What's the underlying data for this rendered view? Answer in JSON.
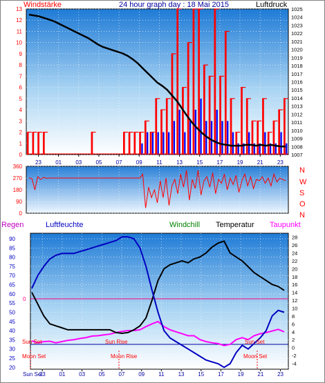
{
  "header": {
    "left_label": "Windstärke",
    "title": "24 hour graph day : 18 Mai 2015",
    "right_label": "Luftdruck"
  },
  "legend": {
    "regen": "Regen",
    "luftfeuchte": "Luftfeuchte",
    "windchill": "Windchill",
    "temperatur": "Temperatur",
    "taupunkt": "Taupunkt"
  },
  "compass": [
    "N",
    "W",
    "S",
    "O",
    "N"
  ],
  "events": {
    "sun_set_1": "Sun Set",
    "sun_rise": "Sun Rise",
    "sun_set_2": "Sun Set",
    "moon_set_1": "Moon Set",
    "moon_rise": "Moon Rise",
    "moon_set_2": "Moon Set",
    "sun_set_axis": "Sun Set"
  },
  "colors": {
    "wind_gust": "#ff0000",
    "wind_avg": "#0000ff",
    "pressure": "#000000",
    "direction": "#ff0000",
    "humidity": "#0000ff",
    "temperature": "#000000",
    "windchill": "#000000",
    "dewpoint": "#ff00ff",
    "rain_line": "#ff0080",
    "event_line": "#0000a0",
    "grad_top": "#1f7bd6",
    "grad_bottom": "#ffffff"
  },
  "chart_data": [
    {
      "type": "line",
      "name": "wind_pressure",
      "x_ticks": [
        "23",
        "01",
        "03",
        "05",
        "07",
        "09",
        "11",
        "13",
        "15",
        "17",
        "19",
        "21",
        "23"
      ],
      "left_axis": {
        "label": "Windstärke",
        "ticks": [
          0,
          1,
          2,
          3,
          4,
          5,
          6,
          7,
          8,
          9,
          10,
          11,
          12,
          13
        ],
        "ylim": [
          0,
          13
        ]
      },
      "right_axis": {
        "label": "Luftdruck",
        "ticks": [
          1007,
          1008,
          1009,
          1010,
          1011,
          1012,
          1013,
          1014,
          1015,
          1016,
          1017,
          1018,
          1019,
          1020,
          1021,
          1022,
          1023,
          1024,
          1025
        ],
        "ylim": [
          1007,
          1025
        ]
      },
      "pressure": {
        "x": [
          22,
          22.5,
          23,
          23.5,
          0,
          0.5,
          1,
          1.5,
          2,
          2.5,
          3,
          3.5,
          4,
          4.5,
          5,
          5.5,
          6,
          6.5,
          7,
          7.5,
          8,
          8.5,
          9,
          9.5,
          10,
          10.5,
          11,
          11.5,
          12,
          12.5,
          13,
          13.5,
          14,
          14.5,
          15,
          15.5,
          16,
          16.5,
          17,
          17.5,
          18,
          18.5,
          19,
          19.5,
          20,
          20.5,
          21,
          21.5,
          22,
          22.5,
          23,
          23.5,
          0
        ],
        "values": [
          1024.3,
          1024.2,
          1024.1,
          1023.9,
          1023.7,
          1023.5,
          1023.2,
          1022.9,
          1022.6,
          1022.3,
          1022.0,
          1021.7,
          1021.4,
          1021.0,
          1020.6,
          1020.3,
          1020.1,
          1019.9,
          1019.7,
          1019.5,
          1019.2,
          1018.8,
          1018.3,
          1017.7,
          1017.1,
          1016.5,
          1015.9,
          1015.5,
          1015.0,
          1014.3,
          1013.6,
          1012.7,
          1011.8,
          1011.0,
          1010.3,
          1009.7,
          1009.2,
          1008.8,
          1008.5,
          1008.3,
          1008.2,
          1008.1,
          1008.1,
          1008.1,
          1008.2,
          1008.2,
          1008.1,
          1008.2,
          1008.1,
          1008.2,
          1008.1,
          1008.0,
          1008.0
        ]
      },
      "wind_gust_hourly_max": [
        2,
        2,
        2,
        2,
        0,
        0,
        0,
        0,
        0,
        0,
        0,
        0,
        2,
        0,
        0,
        0,
        0,
        0,
        2,
        2,
        2,
        2,
        3,
        2,
        5,
        4,
        5,
        9,
        13,
        6,
        10,
        13,
        13,
        8,
        7,
        13,
        7,
        11,
        5,
        2,
        6,
        5,
        3,
        3,
        5,
        2,
        3,
        4,
        5
      ],
      "wind_avg_hourly_max": [
        0,
        0,
        0,
        0,
        0,
        0,
        0,
        0,
        0,
        0,
        0,
        0,
        0,
        0,
        0,
        0,
        0,
        0,
        0,
        0,
        0,
        1,
        2,
        2,
        2,
        2,
        2,
        3,
        4,
        2,
        3,
        4,
        5,
        3,
        3,
        4,
        3,
        3,
        2,
        1,
        1,
        2,
        1,
        1,
        2,
        1,
        1,
        2,
        1
      ]
    },
    {
      "type": "line",
      "name": "wind_direction",
      "left_axis": {
        "ticks": [
          0,
          90,
          180,
          270,
          360
        ],
        "ylim": [
          0,
          360
        ]
      },
      "direction_deg": [
        272,
        265,
        180,
        280,
        260,
        275,
        268,
        270,
        270,
        270,
        270,
        270,
        270,
        270,
        270,
        270,
        270,
        270,
        270,
        270,
        270,
        270,
        270,
        270,
        270,
        270,
        270,
        270,
        270,
        270,
        270,
        270,
        270,
        270,
        270,
        270,
        270,
        270,
        270,
        300,
        40,
        200,
        120,
        180,
        80,
        250,
        120,
        270,
        60,
        210,
        260,
        150,
        300,
        200,
        330,
        100,
        260,
        190,
        330,
        140,
        250,
        280,
        200,
        310,
        150,
        260,
        230,
        300,
        180,
        270,
        220,
        290,
        160,
        250,
        300,
        210,
        280,
        190,
        260,
        250,
        280,
        230,
        270,
        210,
        300,
        240,
        270,
        260,
        250
      ]
    },
    {
      "type": "line",
      "name": "humidity_temperature",
      "left_axis": {
        "label": "Luftfeuchte",
        "ticks": [
          20,
          25,
          30,
          35,
          40,
          45,
          50,
          55,
          60,
          65,
          70,
          75,
          80,
          85,
          90
        ],
        "ylim": [
          19,
          93
        ]
      },
      "right_axis": {
        "label": "Temperatur",
        "ticks": [
          -4,
          -2,
          0,
          2,
          4,
          6,
          8,
          10,
          12,
          14,
          16,
          18,
          20,
          22,
          24,
          26,
          28
        ],
        "ylim": [
          -5.5,
          29
        ]
      },
      "x_ticks": [
        "23",
        "01",
        "03",
        "05",
        "07",
        "09",
        "11",
        "13",
        "15",
        "17",
        "19",
        "21",
        "23"
      ],
      "humidity": [
        63,
        70,
        75,
        79,
        81,
        82,
        82,
        82,
        83,
        84,
        85,
        86,
        87,
        88,
        89,
        91,
        91,
        90,
        85,
        75,
        62,
        50,
        40,
        36,
        34,
        32,
        30,
        28,
        26,
        24,
        23,
        22,
        20,
        22,
        28,
        32,
        30,
        33,
        36,
        40,
        48,
        51,
        50
      ],
      "temperature": [
        14,
        11,
        8,
        6,
        5.5,
        5,
        4.5,
        4.5,
        4.5,
        4.5,
        4.5,
        4.5,
        4.5,
        4.5,
        3.8,
        3.6,
        3.8,
        4.5,
        5.5,
        7.5,
        12,
        17,
        20,
        21,
        21.5,
        22,
        21.5,
        22.5,
        23,
        24,
        25.5,
        26.5,
        27,
        24,
        23,
        22,
        20.5,
        19,
        18,
        17,
        16,
        15.5,
        14.5
      ],
      "dewpoint": [
        1.7,
        1.2,
        1.5,
        1.6,
        1.2,
        1.5,
        1.8,
        2.0,
        2.3,
        2.5,
        2.9,
        3.0,
        3.2,
        3.4,
        3.8,
        4.1,
        4.3,
        4.3,
        4.5,
        5.3,
        6.0,
        6.6,
        5.3,
        4.5,
        4.0,
        3.5,
        3.0,
        3.0,
        2.0,
        1.5,
        1.2,
        1.0,
        0.5,
        0.8,
        2.0,
        2.5,
        2.0,
        3.0,
        3.5,
        3.8,
        4.2,
        4.6,
        4.0
      ],
      "rain_mm": 0
    }
  ]
}
